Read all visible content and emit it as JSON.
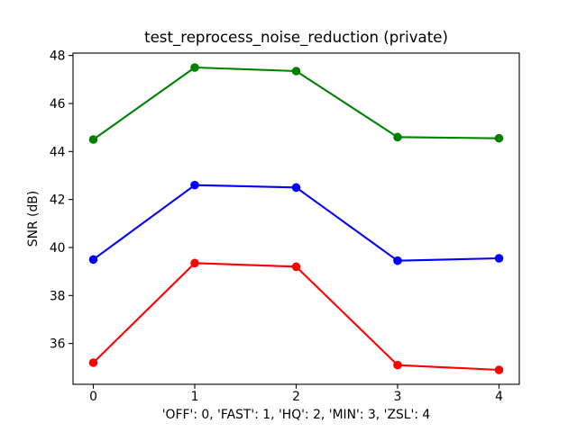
{
  "figure": {
    "background": "#ffffff",
    "text_color": "#000000",
    "spine_color": "#000000"
  },
  "chart_data": {
    "type": "line",
    "title": "test_reprocess_noise_reduction (private)",
    "xlabel": "'OFF': 0, 'FAST': 1, 'HQ': 2, 'MIN': 3, 'ZSL': 4",
    "ylabel": "SNR (dB)",
    "x": [
      0,
      1,
      2,
      3,
      4
    ],
    "xticks": [
      0,
      1,
      2,
      3,
      4
    ],
    "yticks": [
      36,
      38,
      40,
      42,
      44,
      46,
      48
    ],
    "xlim": [
      -0.2,
      4.2
    ],
    "ylim": [
      34.3,
      48.1
    ],
    "grid": false,
    "legend": "none",
    "marker": "circle",
    "series": [
      {
        "name": "green",
        "color": "#008000",
        "values": [
          44.5,
          47.5,
          47.35,
          44.6,
          44.55
        ]
      },
      {
        "name": "blue",
        "color": "#0000ff",
        "values": [
          39.5,
          42.6,
          42.5,
          39.45,
          39.55
        ]
      },
      {
        "name": "red",
        "color": "#ff0000",
        "values": [
          35.2,
          39.35,
          39.2,
          35.1,
          34.9
        ]
      }
    ]
  }
}
